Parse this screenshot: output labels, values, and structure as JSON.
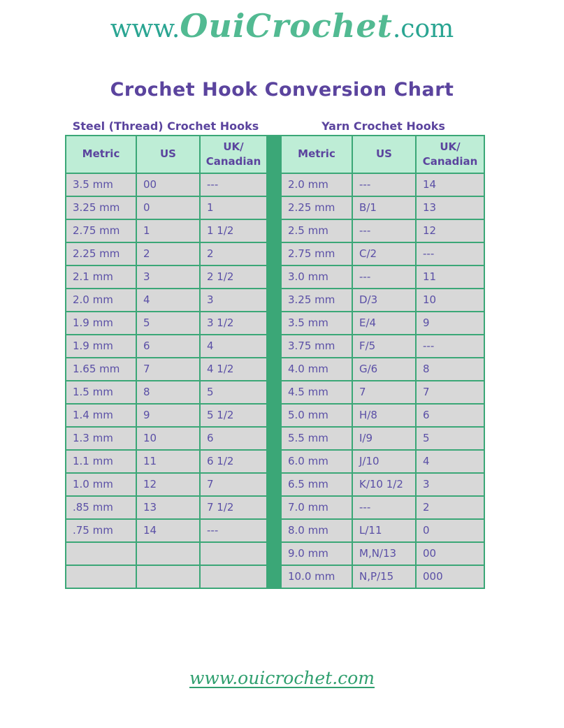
{
  "logo": {
    "prefix": "www.",
    "brand": "OuiCrochet",
    "suffix": ".com"
  },
  "title": "Crochet Hook Conversion Chart",
  "tables": [
    {
      "heading": "Steel (Thread) Crochet Hooks",
      "columns": [
        "Metric",
        "US",
        "UK/\nCanadian"
      ],
      "rows": [
        [
          "3.5 mm",
          "00",
          "---"
        ],
        [
          "3.25 mm",
          "0",
          "1"
        ],
        [
          "2.75 mm",
          "1",
          "1 1/2"
        ],
        [
          "2.25 mm",
          "2",
          "2"
        ],
        [
          "2.1 mm",
          "3",
          "2 1/2"
        ],
        [
          "2.0 mm",
          "4",
          "3"
        ],
        [
          "1.9 mm",
          "5",
          "3 1/2"
        ],
        [
          "1.9 mm",
          "6",
          "4"
        ],
        [
          "1.65 mm",
          "7",
          "4 1/2"
        ],
        [
          "1.5 mm",
          "8",
          "5"
        ],
        [
          "1.4 mm",
          "9",
          "5 1/2"
        ],
        [
          "1.3 mm",
          "10",
          "6"
        ],
        [
          "1.1 mm",
          "11",
          "6 1/2"
        ],
        [
          "1.0 mm",
          "12",
          "7"
        ],
        [
          ".85 mm",
          "13",
          "7 1/2"
        ],
        [
          ".75 mm",
          "14",
          "---"
        ],
        [
          "",
          "",
          ""
        ],
        [
          "",
          "",
          ""
        ]
      ]
    },
    {
      "heading": "Yarn Crochet Hooks",
      "columns": [
        "Metric",
        "US",
        "UK/\nCanadian"
      ],
      "rows": [
        [
          "2.0 mm",
          "---",
          "14"
        ],
        [
          "2.25 mm",
          "B/1",
          "13"
        ],
        [
          "2.5 mm",
          "---",
          "12"
        ],
        [
          "2.75 mm",
          "C/2",
          "---"
        ],
        [
          "3.0 mm",
          "---",
          "11"
        ],
        [
          "3.25 mm",
          "D/3",
          "10"
        ],
        [
          "3.5 mm",
          "E/4",
          "9"
        ],
        [
          "3.75 mm",
          "F/5",
          "---"
        ],
        [
          "4.0 mm",
          "G/6",
          "8"
        ],
        [
          "4.5 mm",
          "7",
          "7"
        ],
        [
          "5.0 mm",
          "H/8",
          "6"
        ],
        [
          "5.5 mm",
          "I/9",
          "5"
        ],
        [
          "6.0 mm",
          "J/10",
          "4"
        ],
        [
          "6.5 mm",
          "K/10 1/2",
          "3"
        ],
        [
          "7.0 mm",
          "---",
          "2"
        ],
        [
          "8.0 mm",
          "L/11",
          "0"
        ],
        [
          "9.0 mm",
          "M,N/13",
          "00"
        ],
        [
          "10.0 mm",
          "N,P/15",
          "000"
        ]
      ]
    }
  ],
  "footer": {
    "link": "www.ouicrochet.com"
  },
  "colors": {
    "border-green": "#3BA777",
    "header-mint": "#BEEDD6",
    "row-gray": "#D8D8D8",
    "heading-purple": "#5B449E",
    "cell-purple": "#5A4FA6",
    "logo-teal": "#2AA592",
    "logo-green": "#52BA92",
    "footer-green": "#2E9F6E",
    "page-bg": "#FFFFFF"
  }
}
